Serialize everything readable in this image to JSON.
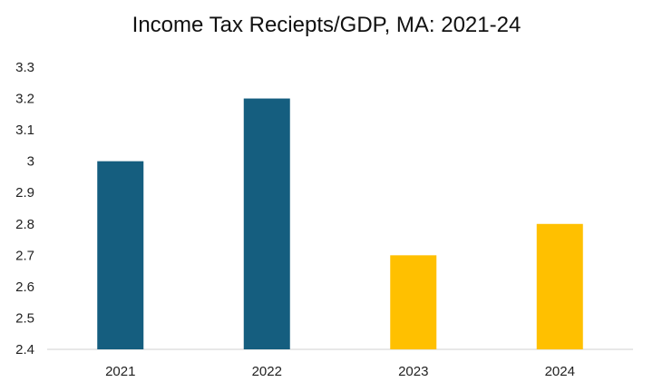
{
  "chart_data": {
    "type": "bar",
    "title": "Income Tax Reciepts/GDP, MA: 2021-24",
    "xlabel": "",
    "ylabel": "",
    "categories": [
      "2021",
      "2022",
      "2023",
      "2024"
    ],
    "values": [
      3.0,
      3.2,
      2.7,
      2.8
    ],
    "bar_colors": [
      "#155e7f",
      "#155e7f",
      "#ffc000",
      "#ffc000"
    ],
    "ylim": [
      2.4,
      3.3
    ],
    "yticks": [
      "2.4",
      "2.5",
      "2.6",
      "2.7",
      "2.8",
      "2.9",
      "3",
      "3.1",
      "3.2",
      "3.3"
    ],
    "ytick_values": [
      2.4,
      2.5,
      2.6,
      2.7,
      2.8,
      2.9,
      3.0,
      3.1,
      3.2,
      3.3
    ],
    "grid": false,
    "legend": "none"
  }
}
